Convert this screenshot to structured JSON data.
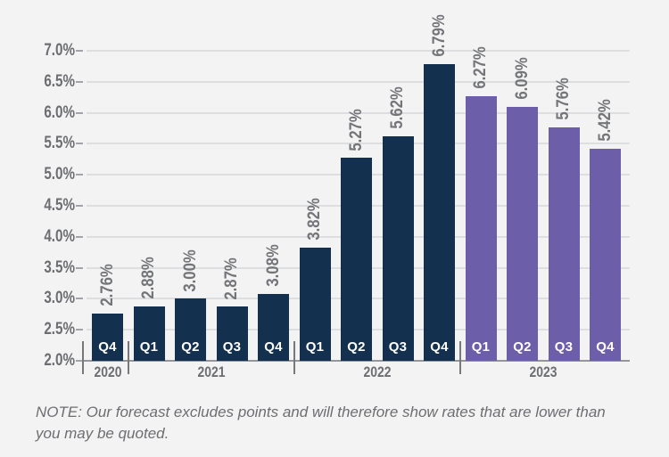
{
  "colors": {
    "background": "#f3f3f4",
    "bar_actual": "#13304f",
    "bar_forecast": "#6c5ea9",
    "gridline": "#dddee0",
    "axis_line": "#949699",
    "axis_label": "#6d6e71",
    "value_label": "#747578",
    "quarter_label": "#ffffff"
  },
  "chart_data": {
    "type": "bar",
    "title": "",
    "xlabel": "",
    "ylabel": "",
    "ylim": [
      2.0,
      7.0
    ],
    "ytick_step": 0.5,
    "grid": true,
    "legend": "none",
    "yticks": [
      {
        "value": 7.0,
        "label": "7.0%"
      },
      {
        "value": 6.5,
        "label": "6.5%"
      },
      {
        "value": 6.0,
        "label": "6.0%"
      },
      {
        "value": 5.5,
        "label": "5.5%"
      },
      {
        "value": 5.0,
        "label": "5.0%"
      },
      {
        "value": 4.5,
        "label": "4.5%"
      },
      {
        "value": 4.0,
        "label": "4.0%"
      },
      {
        "value": 3.5,
        "label": "3.5%"
      },
      {
        "value": 3.0,
        "label": "3.0%"
      },
      {
        "value": 2.5,
        "label": "2.5%"
      },
      {
        "value": 2.0,
        "label": "2.0%"
      }
    ],
    "points": [
      {
        "year": "2020",
        "quarter": "Q4",
        "value": 2.76,
        "label": "2.76%",
        "segment": "actual"
      },
      {
        "year": "2021",
        "quarter": "Q1",
        "value": 2.88,
        "label": "2.88%",
        "segment": "actual"
      },
      {
        "year": "2021",
        "quarter": "Q2",
        "value": 3.0,
        "label": "3.00%",
        "segment": "actual"
      },
      {
        "year": "2021",
        "quarter": "Q3",
        "value": 2.87,
        "label": "2.87%",
        "segment": "actual"
      },
      {
        "year": "2021",
        "quarter": "Q4",
        "value": 3.08,
        "label": "3.08%",
        "segment": "actual"
      },
      {
        "year": "2022",
        "quarter": "Q1",
        "value": 3.82,
        "label": "3.82%",
        "segment": "actual"
      },
      {
        "year": "2022",
        "quarter": "Q2",
        "value": 5.27,
        "label": "5.27%",
        "segment": "actual"
      },
      {
        "year": "2022",
        "quarter": "Q3",
        "value": 5.62,
        "label": "5.62%",
        "segment": "actual"
      },
      {
        "year": "2022",
        "quarter": "Q4",
        "value": 6.79,
        "label": "6.79%",
        "segment": "actual"
      },
      {
        "year": "2023",
        "quarter": "Q1",
        "value": 6.27,
        "label": "6.27%",
        "segment": "forecast"
      },
      {
        "year": "2023",
        "quarter": "Q2",
        "value": 6.09,
        "label": "6.09%",
        "segment": "forecast"
      },
      {
        "year": "2023",
        "quarter": "Q3",
        "value": 5.76,
        "label": "5.76%",
        "segment": "forecast"
      },
      {
        "year": "2023",
        "quarter": "Q4",
        "value": 5.42,
        "label": "5.42%",
        "segment": "forecast"
      }
    ],
    "year_groups": [
      {
        "year": "2020",
        "quarters": [
          "Q4"
        ]
      },
      {
        "year": "2021",
        "quarters": [
          "Q1",
          "Q2",
          "Q3",
          "Q4"
        ]
      },
      {
        "year": "2022",
        "quarters": [
          "Q1",
          "Q2",
          "Q3",
          "Q4"
        ]
      },
      {
        "year": "2023",
        "quarters": [
          "Q1",
          "Q2",
          "Q3",
          "Q4"
        ]
      }
    ]
  },
  "note": {
    "text": "NOTE: Our forecast excludes points and will therefore show rates that are lower than you may be quoted."
  }
}
